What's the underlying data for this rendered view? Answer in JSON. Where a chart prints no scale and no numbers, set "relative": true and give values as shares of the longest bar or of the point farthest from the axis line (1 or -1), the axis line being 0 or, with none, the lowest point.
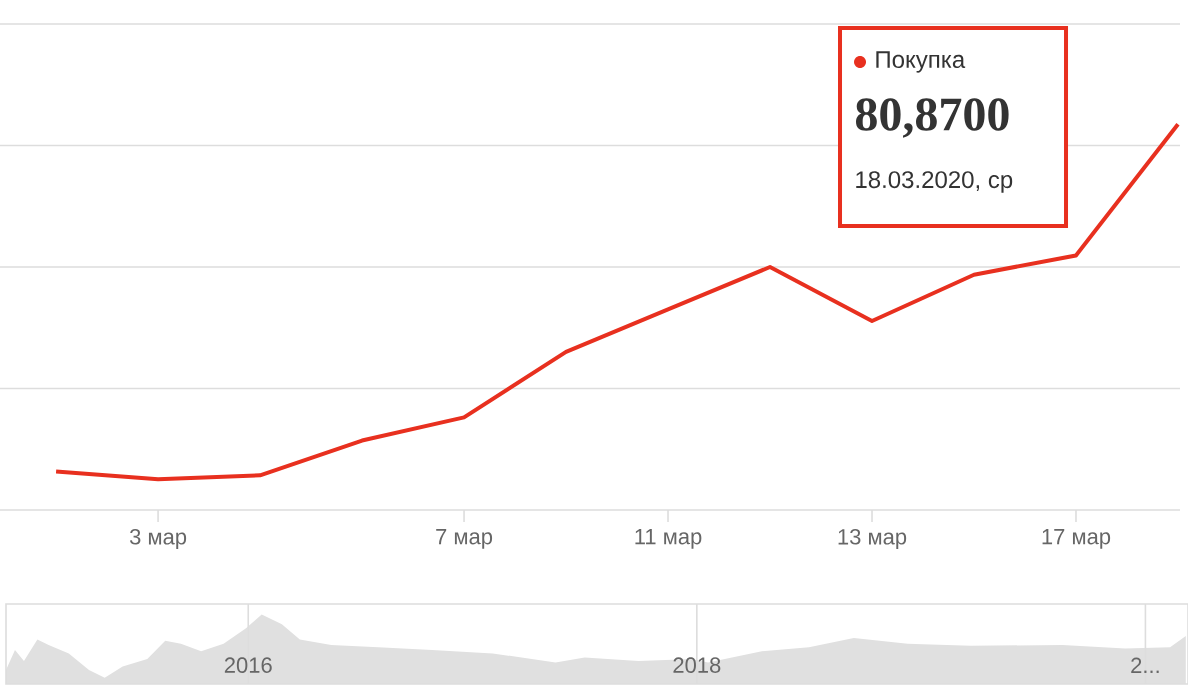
{
  "chart_data": [
    {
      "type": "line",
      "relative": true,
      "categories": [
        null,
        "3 мар",
        null,
        null,
        "7 мар",
        null,
        "11 мар",
        null,
        "13 мар",
        null,
        "17 мар",
        null
      ],
      "series": [
        {
          "name": "Покупка",
          "color": "#e8301f",
          "values": [
            0.1,
            0.08,
            0.09,
            0.18,
            0.24,
            0.41,
            0.52,
            0.63,
            0.49,
            0.61,
            0.66,
            1.0
          ]
        }
      ],
      "annotations": [
        "80,8700",
        "18.03.2020, ср"
      ],
      "grid": "y",
      "legend": "top right",
      "marker": "none",
      "line_style": "solid"
    },
    {
      "type": "area",
      "relative": true,
      "x": [
        2014.92,
        2014.96,
        2015.0,
        2015.06,
        2015.11,
        2015.2,
        2015.29,
        2015.36,
        2015.44,
        2015.55,
        2015.63,
        2015.7,
        2015.79,
        2015.89,
        2015.99,
        2016.06,
        2016.15,
        2016.23,
        2016.37,
        2016.58,
        2016.82,
        2017.09,
        2017.37,
        2017.5,
        2017.74,
        2017.98,
        2018.05,
        2018.29,
        2018.5,
        2018.7,
        2018.94,
        2019.22,
        2019.63,
        2019.91,
        2020.11,
        2020.18
      ],
      "values": [
        0.2,
        0.49,
        0.33,
        0.64,
        0.56,
        0.44,
        0.2,
        0.09,
        0.25,
        0.36,
        0.62,
        0.58,
        0.47,
        0.58,
        0.8,
        1.0,
        0.86,
        0.64,
        0.56,
        0.53,
        0.49,
        0.44,
        0.31,
        0.38,
        0.33,
        0.36,
        0.31,
        0.47,
        0.53,
        0.66,
        0.58,
        0.55,
        0.56,
        0.51,
        0.53,
        0.69
      ],
      "color": "#e0e0e0",
      "xlim": [
        2014.92,
        2020.19
      ],
      "xticks": [
        2016,
        2018,
        {
          "value": 2020,
          "label": "2..."
        }
      ],
      "grid": "x"
    }
  ]
}
